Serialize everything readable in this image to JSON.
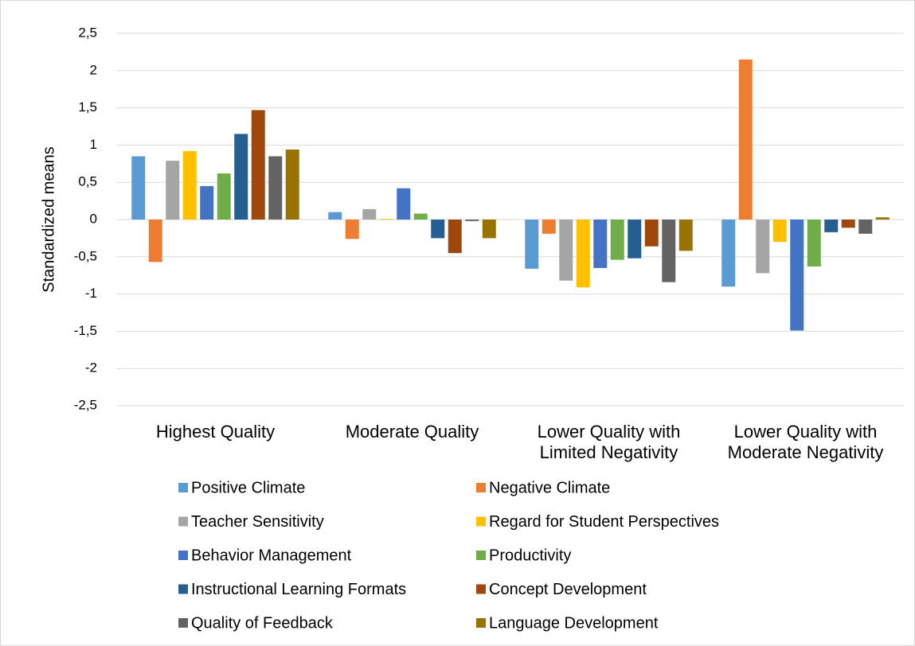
{
  "chart_data": {
    "type": "bar",
    "y_label": "Standardized means",
    "categories": [
      "Highest Quality",
      "Moderate Quality",
      "Lower Quality with Limited Negativity",
      "Lower Quality with Moderate Negativity"
    ],
    "series": [
      {
        "name": "Positive Climate",
        "color": "#5b9bd5",
        "values": [
          0.85,
          0.1,
          -0.66,
          -0.9
        ]
      },
      {
        "name": "Negative Climate",
        "color": "#ed7d31",
        "values": [
          -0.57,
          -0.26,
          -0.19,
          2.15
        ]
      },
      {
        "name": "Teacher Sensitivity",
        "color": "#a5a5a5",
        "values": [
          0.79,
          0.14,
          -0.82,
          -0.72
        ]
      },
      {
        "name": "Regard for Student Perspectives",
        "color": "#ffc000",
        "values": [
          0.92,
          0.01,
          -0.91,
          -0.3
        ]
      },
      {
        "name": "Behavior Management",
        "color": "#4472c4",
        "values": [
          0.45,
          0.42,
          -0.65,
          -1.49
        ]
      },
      {
        "name": "Productivity",
        "color": "#70ad47",
        "values": [
          0.62,
          0.08,
          -0.54,
          -0.63
        ]
      },
      {
        "name": "Instructional Learning Formats",
        "color": "#255e91",
        "values": [
          1.15,
          -0.25,
          -0.52,
          -0.17
        ]
      },
      {
        "name": "Concept Development",
        "color": "#9e480e",
        "values": [
          1.47,
          -0.45,
          -0.36,
          -0.11
        ]
      },
      {
        "name": "Quality of Feedback",
        "color": "#636363",
        "values": [
          0.85,
          -0.02,
          -0.84,
          -0.19
        ]
      },
      {
        "name": "Language Development",
        "color": "#997300",
        "values": [
          0.94,
          -0.25,
          -0.42,
          0.03
        ]
      }
    ],
    "ylim": [
      -2.5,
      2.5
    ],
    "yticks": [
      {
        "value": -2.5,
        "label": "-2,5"
      },
      -2,
      {
        "value": -1.5,
        "label": "-1,5"
      },
      -1,
      {
        "value": -0.5,
        "label": "-0,5"
      },
      0,
      {
        "value": 0.5,
        "label": "0,5"
      },
      1,
      {
        "value": 1.5,
        "label": "1,5"
      },
      2,
      {
        "value": 2.5,
        "label": "2,5"
      }
    ],
    "grid": true
  }
}
